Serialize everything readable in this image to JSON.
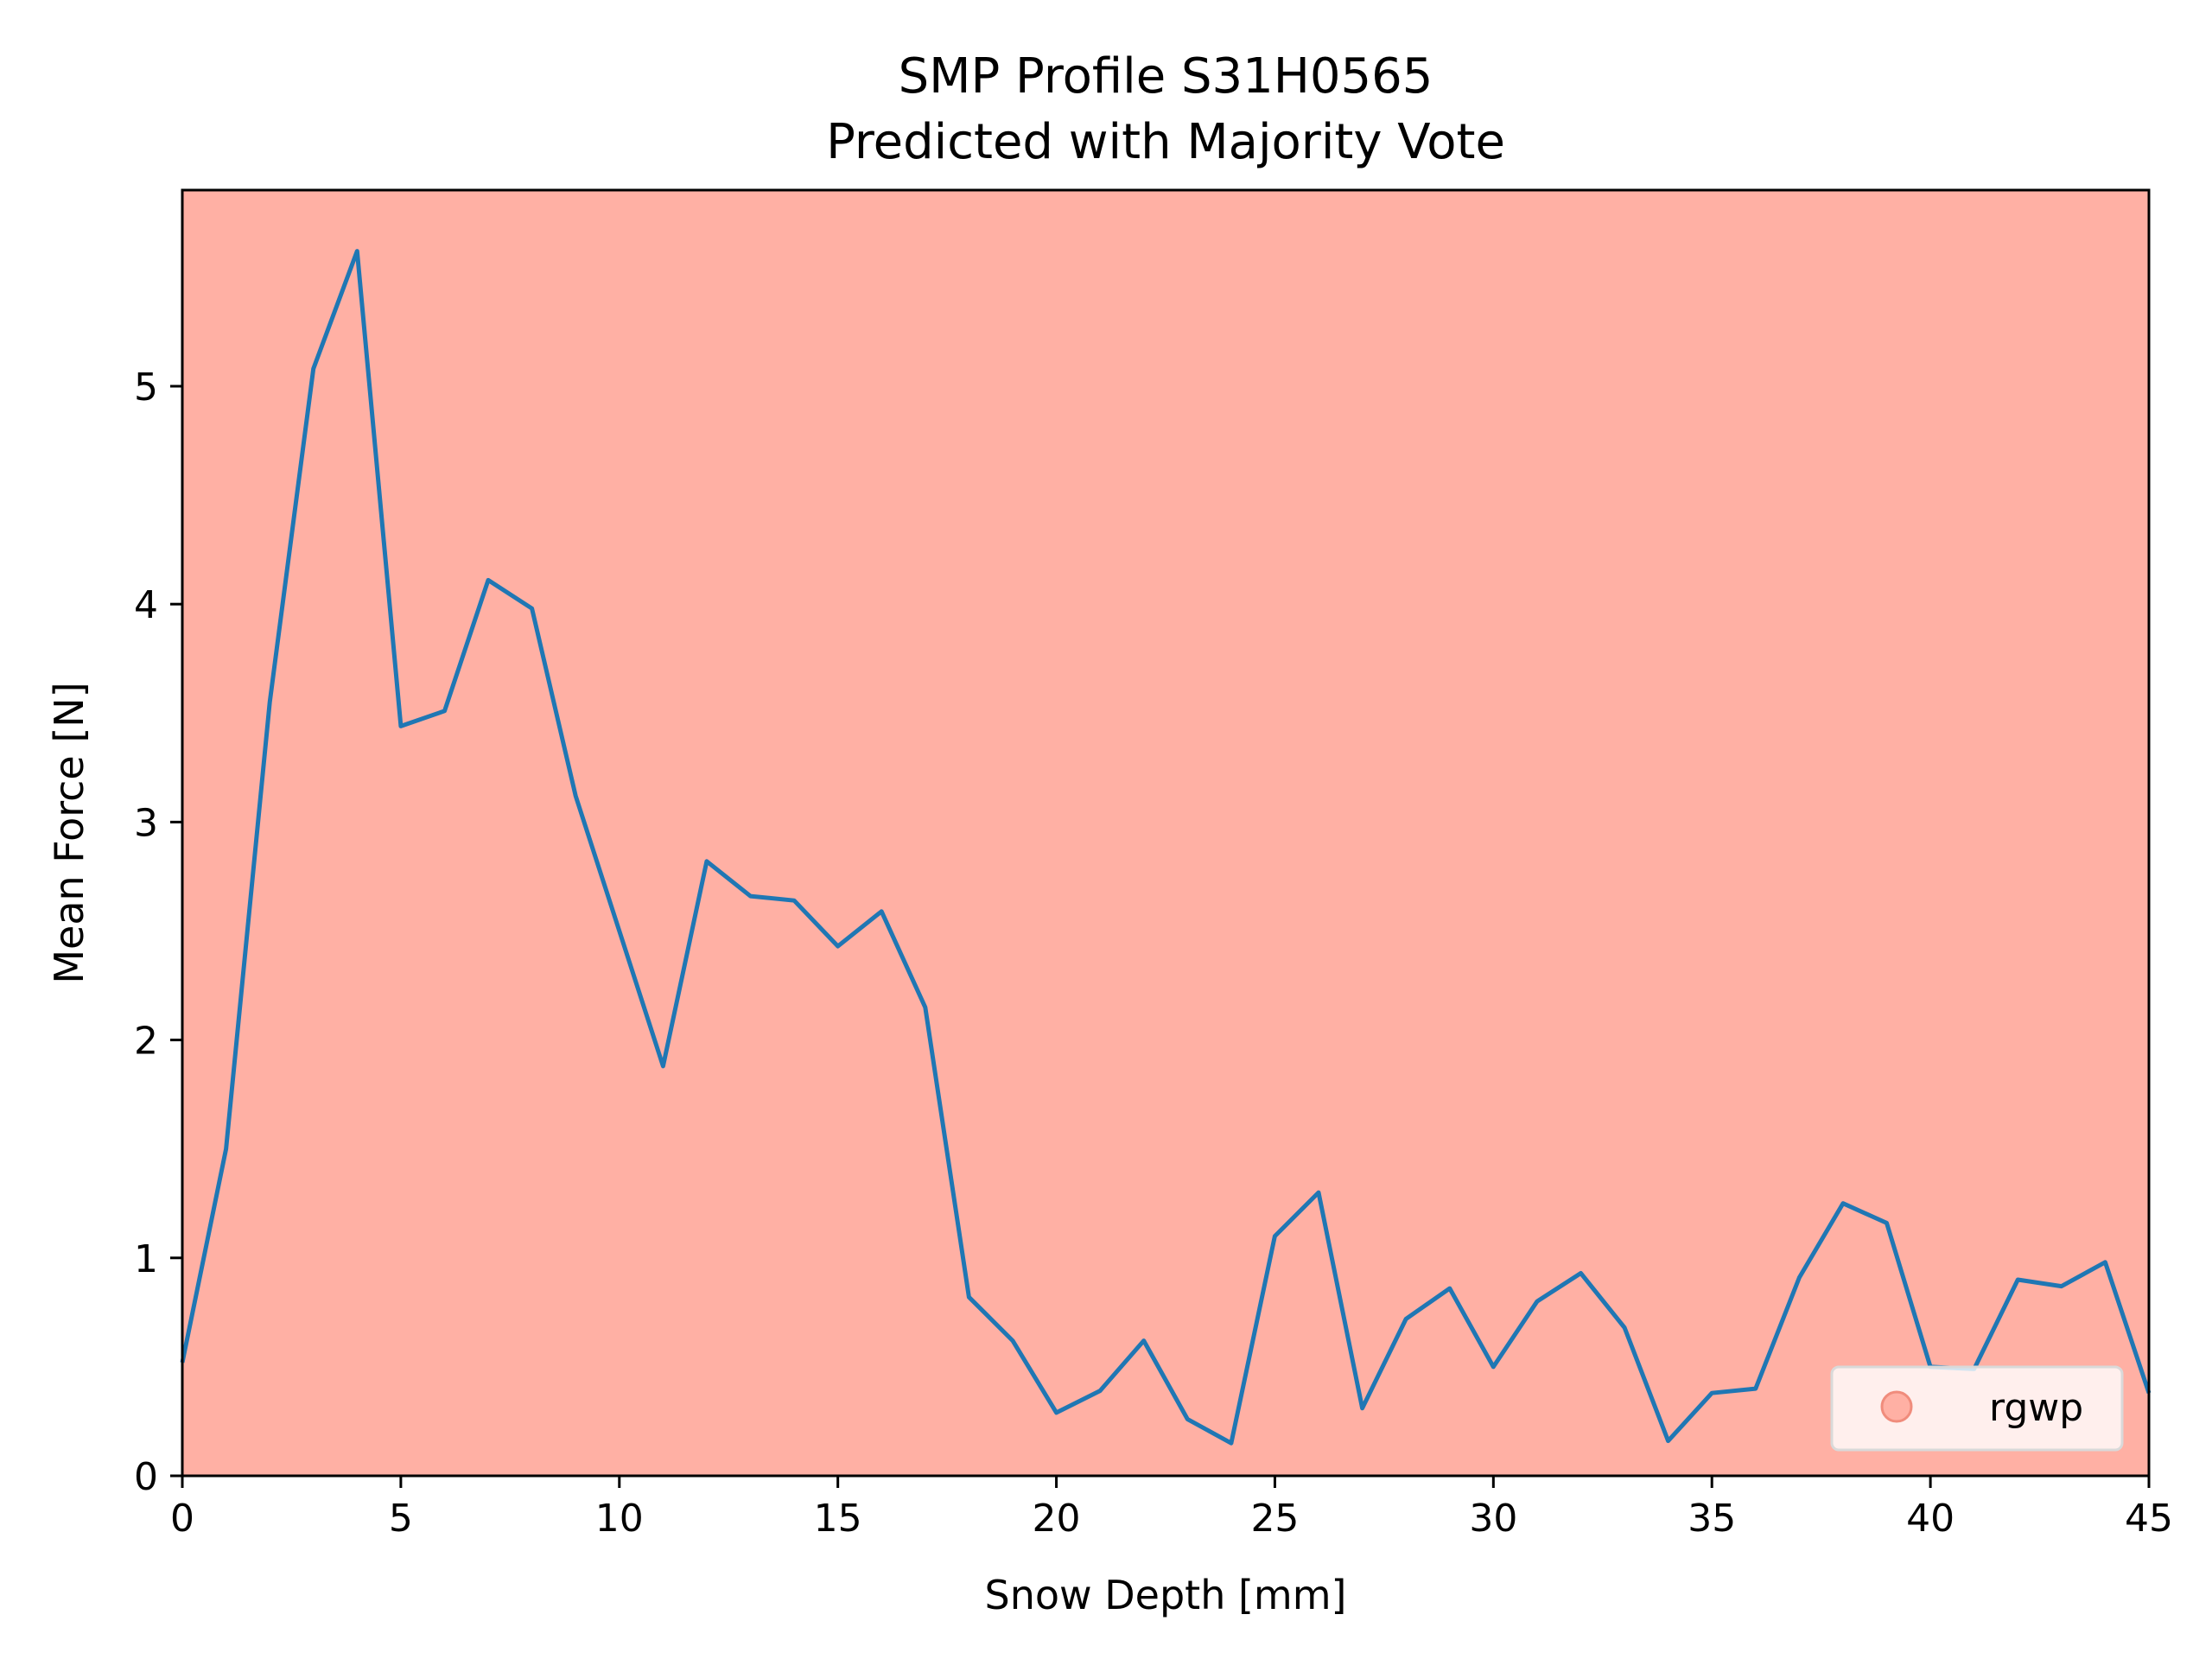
{
  "chart_data": {
    "type": "line",
    "title": "SMP Profile S31H0565",
    "subtitle": "Predicted with Majority Vote",
    "xlabel": "Snow Depth [mm]",
    "ylabel": "Mean Force [N]",
    "xlim": [
      0,
      45
    ],
    "ylim": [
      0,
      5.9
    ],
    "xticks": [
      0,
      5,
      10,
      15,
      20,
      25,
      30,
      35,
      40,
      45
    ],
    "yticks": [
      0,
      1,
      2,
      3,
      4,
      5
    ],
    "grid": false,
    "background_color": "#ffb0a4",
    "line_color": "#1f77b4",
    "legend": {
      "placement": "lower-right",
      "entries": [
        {
          "label": "rgwp",
          "color": "#ffb0a4",
          "marker": "circle"
        }
      ]
    },
    "series": [
      {
        "x": [
          0,
          1,
          2,
          3,
          4,
          5,
          6,
          7,
          8,
          9,
          10,
          11,
          12,
          13,
          14,
          15,
          16,
          17,
          18,
          19,
          20,
          21,
          22,
          23,
          24,
          25,
          26,
          27,
          28,
          29,
          30,
          31,
          32,
          33,
          34,
          35,
          36,
          37,
          38,
          39,
          40,
          41,
          42,
          43,
          44,
          45
        ],
        "y": [
          0.52,
          1.5,
          3.55,
          5.08,
          5.62,
          3.44,
          3.51,
          4.11,
          3.98,
          3.12,
          2.5,
          1.88,
          2.82,
          2.66,
          2.64,
          2.43,
          2.59,
          2.15,
          0.82,
          0.62,
          0.29,
          0.39,
          0.62,
          0.26,
          0.15,
          1.1,
          1.3,
          0.31,
          0.72,
          0.86,
          0.5,
          0.8,
          0.93,
          0.68,
          0.16,
          0.38,
          0.4,
          0.91,
          1.25,
          1.16,
          0.5,
          0.49,
          0.9,
          0.87,
          0.98,
          0.38
        ]
      }
    ]
  }
}
